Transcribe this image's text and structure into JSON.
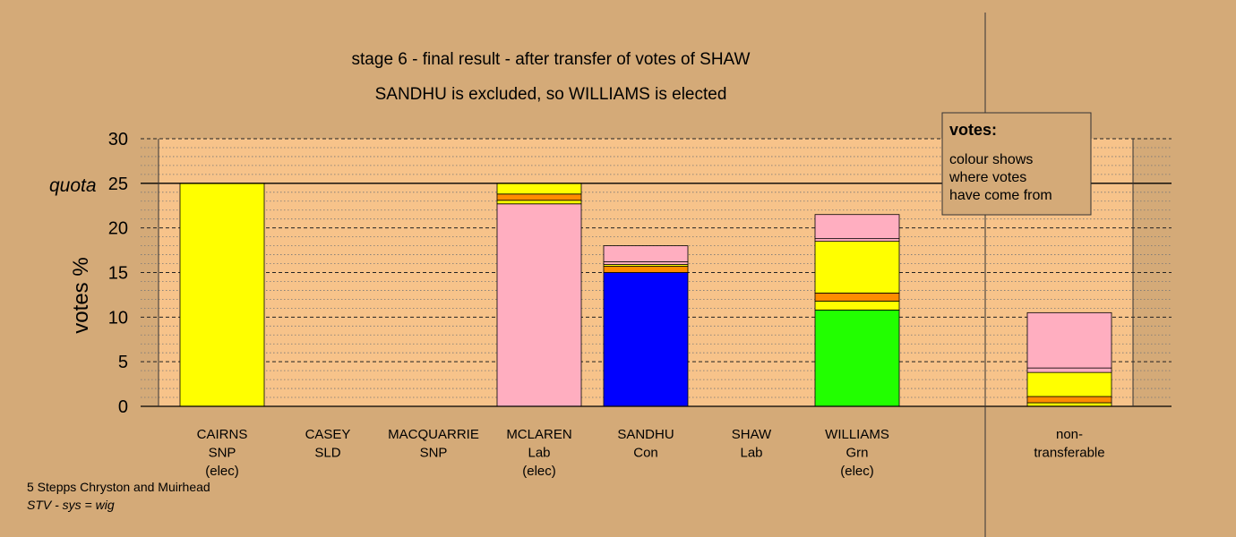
{
  "chart_data": {
    "type": "bar",
    "stacked": true,
    "title": "stage 6 - final result - after transfer of votes of SHAW",
    "subtitle": "SANDHU is excluded, so WILLIAMS is elected",
    "ylabel": "votes %",
    "ylim": [
      0,
      30
    ],
    "yticks": [
      "0",
      "5",
      "10",
      "15",
      "20",
      "25",
      "30"
    ],
    "quota": {
      "label": "quota",
      "value": 25
    },
    "grid": true,
    "legend": {
      "title": "votes:",
      "lines": [
        "colour shows",
        "where votes",
        "have come from"
      ],
      "placement": "top-right"
    },
    "categories": [
      {
        "lines": [
          "CAIRNS",
          "SNP",
          "(elec)"
        ]
      },
      {
        "lines": [
          "CASEY",
          "SLD"
        ]
      },
      {
        "lines": [
          "MACQUARRIE",
          "SNP"
        ]
      },
      {
        "lines": [
          "MCLAREN",
          "Lab",
          "(elec)"
        ]
      },
      {
        "lines": [
          "SANDHU",
          "Con"
        ]
      },
      {
        "lines": [
          "SHAW",
          "Lab"
        ]
      },
      {
        "lines": [
          "WILLIAMS",
          "Grn",
          "(elec)"
        ]
      },
      {
        "lines": [
          "non-",
          "transferable"
        ]
      }
    ],
    "stacks": [
      [
        {
          "value": 25.0,
          "color": "#ffff00"
        }
      ],
      [],
      [],
      [
        {
          "value": 22.7,
          "color": "#ffaec0"
        },
        {
          "value": 0.4,
          "color": "#ffff00"
        },
        {
          "value": 0.7,
          "color": "#ff8c00"
        },
        {
          "value": 1.2,
          "color": "#ffff00"
        }
      ],
      [
        {
          "value": 15.0,
          "color": "#0000ff"
        },
        {
          "value": 0.7,
          "color": "#ff8c00"
        },
        {
          "value": 0.2,
          "color": "#ffff00"
        },
        {
          "value": 0.3,
          "color": "#ffaec0"
        },
        {
          "value": 1.8,
          "color": "#ffaec0"
        }
      ],
      [],
      [
        {
          "value": 10.8,
          "color": "#22ff00"
        },
        {
          "value": 1.0,
          "color": "#ffff00"
        },
        {
          "value": 0.9,
          "color": "#ff8c00"
        },
        {
          "value": 5.8,
          "color": "#ffff00"
        },
        {
          "value": 0.3,
          "color": "#ffaec0"
        },
        {
          "value": 2.7,
          "color": "#ffaec0"
        }
      ],
      [
        {
          "value": 0.4,
          "color": "#ffff00"
        },
        {
          "value": 0.7,
          "color": "#ff8c00"
        },
        {
          "value": 2.7,
          "color": "#ffff00"
        },
        {
          "value": 0.5,
          "color": "#ffaec0"
        },
        {
          "value": 6.2,
          "color": "#ffaec0"
        }
      ]
    ],
    "colors": {
      "background": "#d4aa78",
      "plot_area": "#f7c38a"
    }
  },
  "footer": {
    "line1": "5 Stepps Chryston and Muirhead",
    "line2": "STV - sys = wig"
  }
}
